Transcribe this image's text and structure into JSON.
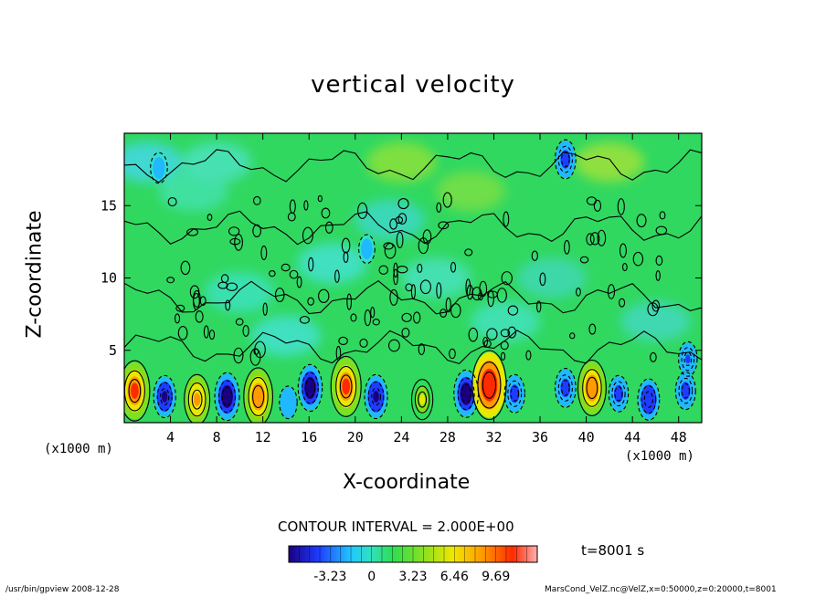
{
  "chart_data": {
    "type": "heatmap",
    "title": "vertical velocity",
    "xlabel": "X-coordinate",
    "ylabel": "Z-coordinate",
    "x_unit": "(x1000 m)",
    "xlim": [
      0,
      50
    ],
    "ylim": [
      0,
      20
    ],
    "x_ticks": [
      "4",
      "8",
      "12",
      "16",
      "20",
      "24",
      "28",
      "32",
      "36",
      "40",
      "44",
      "48"
    ],
    "y_ticks": [
      "5",
      "10",
      "15"
    ],
    "contour_interval": "CONTOUR INTERVAL = 2.000E+00",
    "colorbar": {
      "ticks": [
        "-3.23",
        "0",
        "3.23",
        "6.46",
        "9.69"
      ],
      "range": [
        -6.46,
        12.92
      ]
    },
    "time": "t=8001 s",
    "cells": [
      {
        "x": 0.9,
        "z": 2.2,
        "value": 9.7
      },
      {
        "x": 3.5,
        "z": 1.8,
        "value": -5.0
      },
      {
        "x": 6.3,
        "z": 1.6,
        "value": 7.0
      },
      {
        "x": 8.9,
        "z": 1.8,
        "value": -6.5
      },
      {
        "x": 11.6,
        "z": 1.8,
        "value": 9.0
      },
      {
        "x": 14.2,
        "z": 1.4,
        "value": -2.5
      },
      {
        "x": 16.1,
        "z": 2.4,
        "value": -6.2
      },
      {
        "x": 19.2,
        "z": 2.5,
        "value": 9.7
      },
      {
        "x": 21.8,
        "z": 1.8,
        "value": -5.5
      },
      {
        "x": 25.8,
        "z": 1.6,
        "value": 4.5
      },
      {
        "x": 29.6,
        "z": 2.0,
        "value": -6.4
      },
      {
        "x": 31.6,
        "z": 2.6,
        "value": 12.0
      },
      {
        "x": 33.8,
        "z": 2.0,
        "value": -4.0
      },
      {
        "x": 38.2,
        "z": 2.4,
        "value": -4.2
      },
      {
        "x": 40.5,
        "z": 2.4,
        "value": 8.5
      },
      {
        "x": 42.8,
        "z": 2.0,
        "value": -3.5
      },
      {
        "x": 45.4,
        "z": 1.6,
        "value": -4.8
      },
      {
        "x": 48.6,
        "z": 2.2,
        "value": -3.8
      },
      {
        "x": 48.8,
        "z": 4.4,
        "value": -3.0
      },
      {
        "x": 38.2,
        "z": 18.2,
        "value": -4.2
      },
      {
        "x": 3.0,
        "z": 17.6,
        "value": -2.0
      },
      {
        "x": 21.0,
        "z": 12.0,
        "value": -1.5
      }
    ]
  },
  "footer": {
    "left": "/usr/bin/gpview   2008-12-28",
    "right": "MarsCond_VelZ.nc@VelZ,x=0:50000,z=0:20000,t=8001"
  }
}
